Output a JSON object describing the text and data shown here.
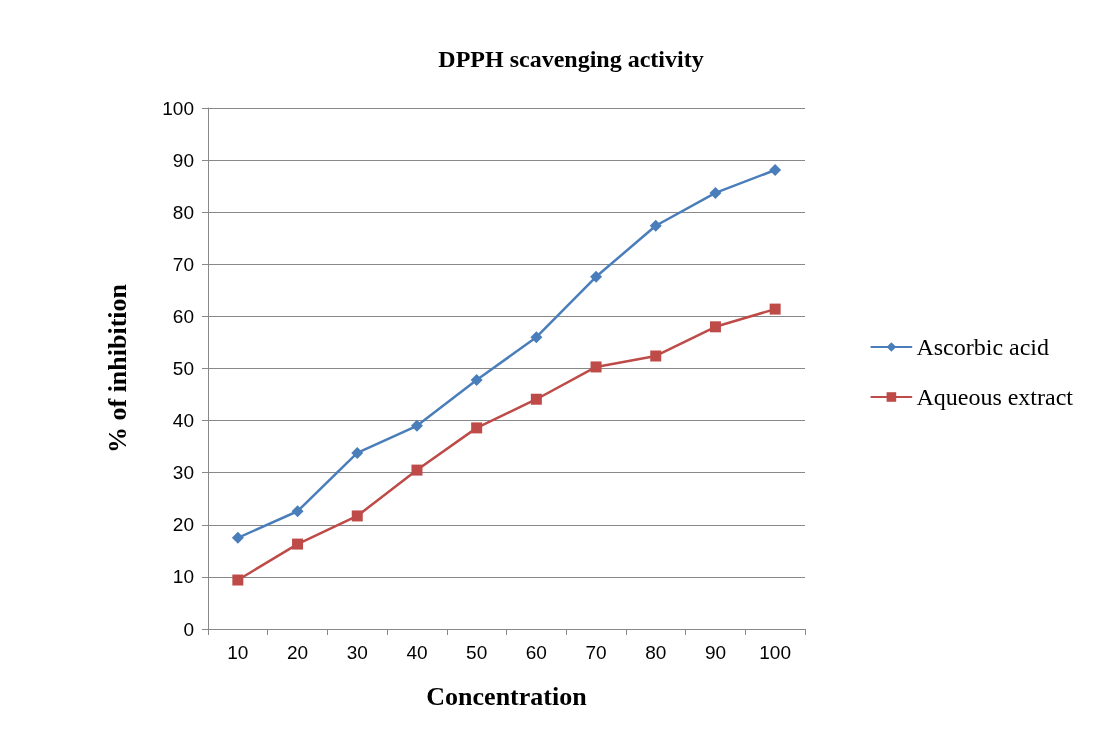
{
  "chart_data": {
    "type": "line",
    "title": "DPPH scavenging activity",
    "xlabel": "Concentration",
    "ylabel": "% of inhibition",
    "categories": [
      "10",
      "20",
      "30",
      "40",
      "50",
      "60",
      "70",
      "80",
      "90",
      "100"
    ],
    "series": [
      {
        "name": "Ascorbic acid",
        "color": "#4a7ebb",
        "marker": "diamond",
        "values": [
          17.5,
          22.6,
          33.8,
          39.0,
          47.8,
          56.0,
          67.6,
          77.4,
          83.7,
          88.1
        ]
      },
      {
        "name": "Aqueous extract",
        "color": "#be4b48",
        "marker": "square",
        "values": [
          9.4,
          16.3,
          21.7,
          30.5,
          38.6,
          44.1,
          50.3,
          52.4,
          58.0,
          61.4
        ]
      }
    ],
    "ylim": [
      0,
      100
    ],
    "yticks": [
      0,
      10,
      20,
      30,
      40,
      50,
      60,
      70,
      80,
      90,
      100
    ],
    "grid": "y",
    "legend": "right",
    "line_style": "solid"
  }
}
